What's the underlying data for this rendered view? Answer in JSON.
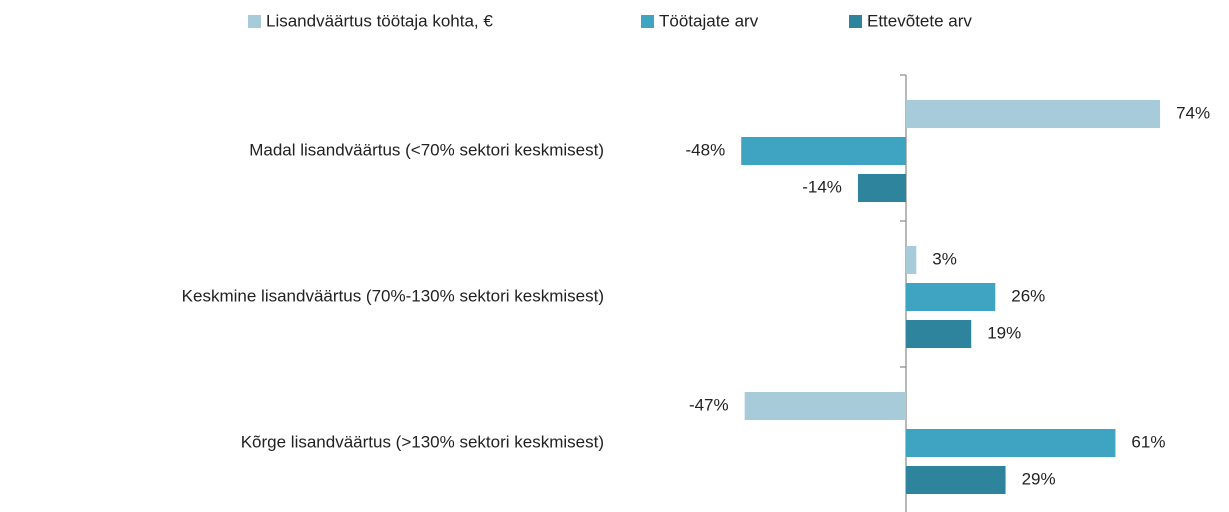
{
  "chart_data": {
    "type": "hbar",
    "categories": [
      "Madal lisandväärtus (<70% sektori keskmisest)",
      "Keskmine lisandväärtus (70%-130% sektori keskmisest)",
      "Kõrge lisandväärtus (>130% sektori keskmisest)"
    ],
    "series": [
      {
        "name": "Lisandväärtus töötaja kohta, €",
        "color": "#a8cbd9",
        "values": [
          74,
          3,
          -47
        ],
        "value_labels": [
          "74%",
          "3%",
          "-47%"
        ]
      },
      {
        "name": "Töötajate arv",
        "color": "#3fa4c2",
        "values": [
          -48,
          26,
          61
        ],
        "value_labels": [
          "-48%",
          "26%",
          "61%"
        ]
      },
      {
        "name": "Ettevõtete arv",
        "color": "#2e849c",
        "values": [
          -14,
          19,
          29
        ],
        "value_labels": [
          "-14%",
          "19%",
          "29%"
        ]
      }
    ],
    "xlim": [
      -90,
      90
    ],
    "legend": "top"
  }
}
